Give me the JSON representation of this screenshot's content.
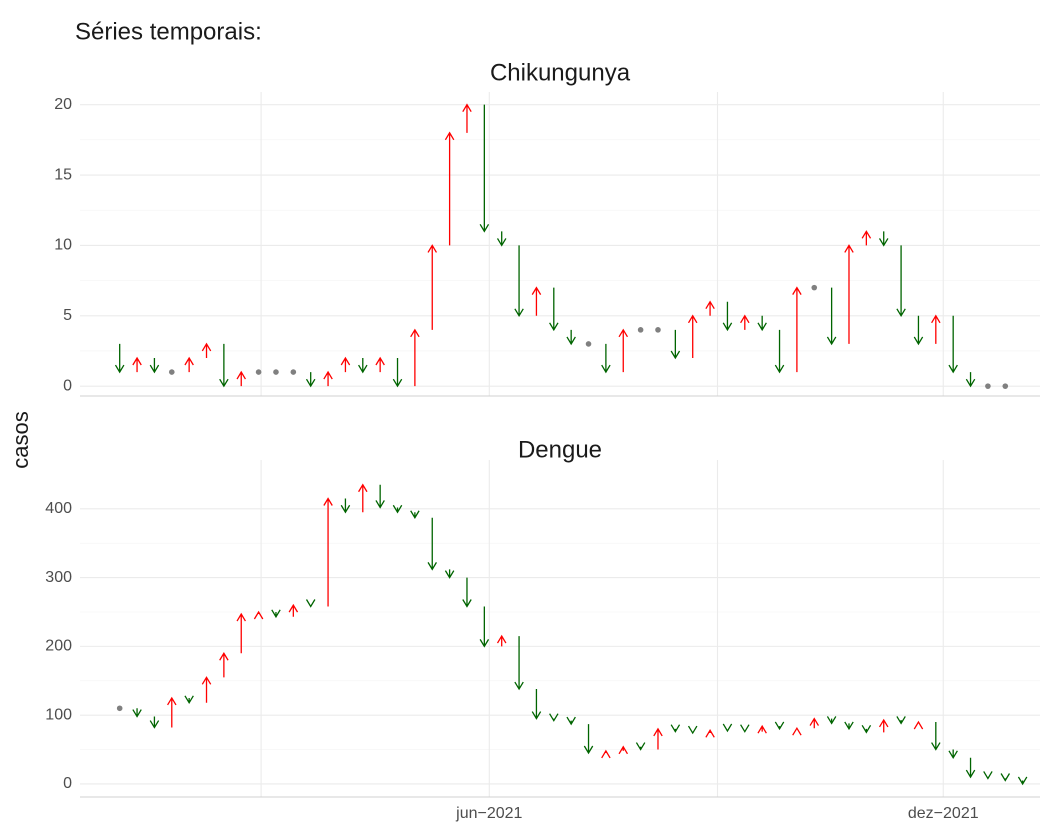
{
  "title": "Séries temporais:",
  "y_label": "casos",
  "chart_data": [
    {
      "type": "arrow",
      "title": "Chikungunya",
      "up_color": "#ff0000",
      "down_color": "#006400",
      "flat_color": "#808080",
      "x": [
        "2021-01-03",
        "2021-01-10",
        "2021-01-17",
        "2021-01-24",
        "2021-01-31",
        "2021-02-07",
        "2021-02-14",
        "2021-02-21",
        "2021-02-28",
        "2021-03-07",
        "2021-03-14",
        "2021-03-21",
        "2021-03-28",
        "2021-04-04",
        "2021-04-11",
        "2021-04-18",
        "2021-04-25",
        "2021-05-02",
        "2021-05-09",
        "2021-05-16",
        "2021-05-23",
        "2021-05-30",
        "2021-06-06",
        "2021-06-13",
        "2021-06-20",
        "2021-06-27",
        "2021-07-04",
        "2021-07-11",
        "2021-07-18",
        "2021-07-25",
        "2021-08-01",
        "2021-08-08",
        "2021-08-15",
        "2021-08-22",
        "2021-08-29",
        "2021-09-05",
        "2021-09-12",
        "2021-09-19",
        "2021-09-26",
        "2021-10-03",
        "2021-10-10",
        "2021-10-17",
        "2021-10-24",
        "2021-10-31",
        "2021-11-07",
        "2021-11-14",
        "2021-11-21",
        "2021-11-28",
        "2021-12-05",
        "2021-12-12",
        "2021-12-19",
        "2021-12-26",
        "2022-01-02"
      ],
      "start": 3,
      "values": [
        1,
        2,
        1,
        1,
        2,
        3,
        0,
        1,
        1,
        1,
        1,
        0,
        1,
        2,
        1,
        2,
        0,
        4,
        10,
        18,
        20,
        11,
        10,
        5,
        7,
        4,
        3,
        3,
        1,
        4,
        4,
        4,
        2,
        5,
        6,
        4,
        5,
        4,
        1,
        7,
        7,
        3,
        10,
        11,
        10,
        5,
        3,
        5,
        1,
        0,
        0,
        0,
        null
      ],
      "xlim": [
        "2020-12-18",
        "2022-01-09"
      ],
      "xticks": [
        "2021-03-01",
        "2021-06-01",
        "2021-09-01",
        "2021-12-01"
      ],
      "ylim": [
        -0.7,
        20.9
      ],
      "yticks": [
        0,
        5,
        10,
        15,
        20
      ],
      "grid": true
    },
    {
      "type": "arrow",
      "title": "Dengue",
      "up_color": "#ff0000",
      "down_color": "#006400",
      "flat_color": "#808080",
      "x": [
        "2021-01-03",
        "2021-01-10",
        "2021-01-17",
        "2021-01-24",
        "2021-01-31",
        "2021-02-07",
        "2021-02-14",
        "2021-02-21",
        "2021-02-28",
        "2021-03-07",
        "2021-03-14",
        "2021-03-21",
        "2021-03-28",
        "2021-04-04",
        "2021-04-11",
        "2021-04-18",
        "2021-04-25",
        "2021-05-02",
        "2021-05-09",
        "2021-05-16",
        "2021-05-23",
        "2021-05-30",
        "2021-06-06",
        "2021-06-13",
        "2021-06-20",
        "2021-06-27",
        "2021-07-04",
        "2021-07-11",
        "2021-07-18",
        "2021-07-25",
        "2021-08-01",
        "2021-08-08",
        "2021-08-15",
        "2021-08-22",
        "2021-08-29",
        "2021-09-05",
        "2021-09-12",
        "2021-09-19",
        "2021-09-26",
        "2021-10-03",
        "2021-10-10",
        "2021-10-17",
        "2021-10-24",
        "2021-10-31",
        "2021-11-07",
        "2021-11-14",
        "2021-11-21",
        "2021-11-28",
        "2021-12-05",
        "2021-12-12",
        "2021-12-19",
        "2021-12-26",
        "2022-01-02"
      ],
      "start": 110,
      "values": [
        110,
        98,
        82,
        125,
        118,
        155,
        190,
        247,
        250,
        243,
        260,
        258,
        415,
        395,
        435,
        402,
        395,
        387,
        312,
        300,
        258,
        200,
        215,
        138,
        95,
        92,
        87,
        45,
        48,
        54,
        50,
        80,
        76,
        74,
        78,
        77,
        76,
        84,
        80,
        81,
        95,
        88,
        80,
        75,
        93,
        88,
        90,
        50,
        38,
        10,
        8,
        5,
        0
      ],
      "xlim": [
        "2020-12-18",
        "2022-01-09"
      ],
      "xticks": [
        {
          "value": "2021-03-01",
          "label": null
        },
        {
          "value": "2021-06-01",
          "label": "jun−2021"
        },
        {
          "value": "2021-09-01",
          "label": null
        },
        {
          "value": "2021-12-01",
          "label": "dez−2021"
        }
      ],
      "ylim": [
        -19,
        471
      ],
      "yticks": [
        0,
        100,
        200,
        300,
        400
      ],
      "grid": true
    }
  ]
}
